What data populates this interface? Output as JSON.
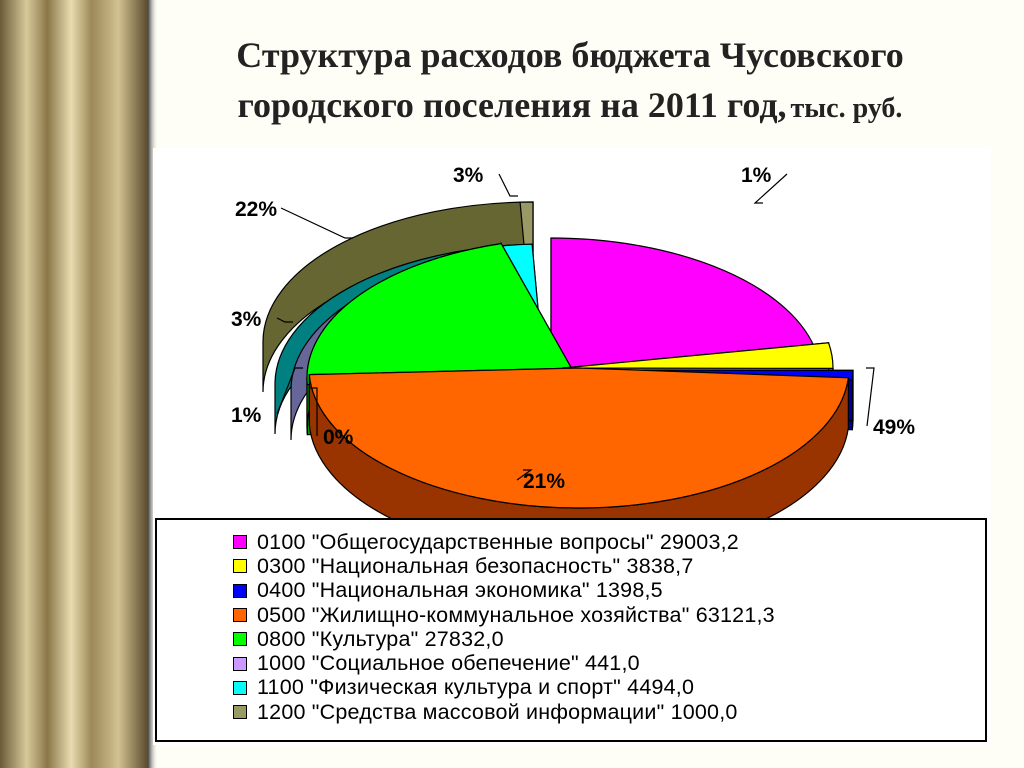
{
  "title": {
    "main": "Структура расходов бюджета Чусовского городского поселения на 2011 год,",
    "unit": "тыс. руб."
  },
  "chart_data": {
    "type": "pie",
    "title": "Структура расходов бюджета Чусовского городского поселения на 2011 год, тыс. руб.",
    "slices": [
      {
        "code": "0100",
        "label": "0100 \"Общегосударственные вопросы\" 29003,2",
        "value": 29003.2,
        "percent_label": "22%",
        "color": "#ff00ff",
        "side": "#990099"
      },
      {
        "code": "0300",
        "label": "0300 \"Национальная безопасность\" 3838,7",
        "value": 3838.7,
        "percent_label": "3%",
        "color": "#ffff00",
        "side": "#999900"
      },
      {
        "code": "0400",
        "label": "0400 \"Национальная экономика\" 1398,5",
        "value": 1398.5,
        "percent_label": "1%",
        "color": "#0000ff",
        "side": "#000099"
      },
      {
        "code": "0500",
        "label": "0500 \"Жилищно-коммунальное хозяйства\" 63121,3",
        "value": 63121.3,
        "percent_label": "49%",
        "color": "#ff6600",
        "side": "#993300"
      },
      {
        "code": "0800",
        "label": "0800 \"Культура\" 27832,0",
        "value": 27832.0,
        "percent_label": "21%",
        "color": "#00ff00",
        "side": "#009900"
      },
      {
        "code": "1000",
        "label": "1000 \"Социальное обепечение\" 441,0",
        "value": 441.0,
        "percent_label": "0%",
        "color": "#cc99ff",
        "side": "#666699"
      },
      {
        "code": "1100",
        "label": "1100 \"Физическая культура и спорт\" 4494,0",
        "value": 4494.0,
        "percent_label": "3%",
        "color": "#00ffff",
        "side": "#008080"
      },
      {
        "code": "1200",
        "label": "1200 \"Средства массовой информации\" 1000,0",
        "value": 1000.0,
        "percent_label": "1%",
        "color": "#999966",
        "side": "#666633"
      }
    ],
    "legend_position": "bottom"
  }
}
